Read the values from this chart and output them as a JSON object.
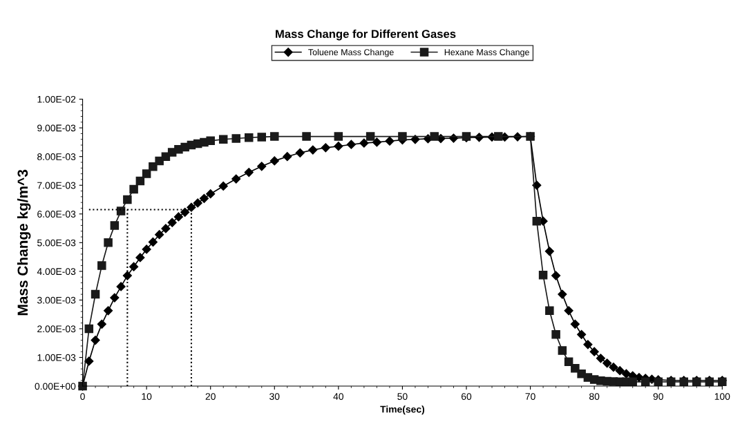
{
  "chart_data": {
    "type": "line",
    "title": "Mass Change for Different Gases",
    "xlabel": "Time(sec)",
    "ylabel": "Mass Change kg/m^3",
    "xlim": [
      0,
      100
    ],
    "xticks": [
      0,
      10,
      20,
      30,
      40,
      50,
      60,
      70,
      80,
      90,
      100
    ],
    "ylim": [
      0,
      0.01
    ],
    "yticks": [
      {
        "value": 0,
        "label": "0.00E+00"
      },
      {
        "value": 0.001,
        "label": "1.00E-03"
      },
      {
        "value": 0.002,
        "label": "2.00E-03"
      },
      {
        "value": 0.003,
        "label": "3.00E-03"
      },
      {
        "value": 0.004,
        "label": "4.00E-03"
      },
      {
        "value": 0.005,
        "label": "5.00E-03"
      },
      {
        "value": 0.006,
        "label": "6.00E-03"
      },
      {
        "value": 0.007,
        "label": "7.00E-03"
      },
      {
        "value": 0.008,
        "label": "8.00E-03"
      },
      {
        "value": 0.009,
        "label": "9.00E-03"
      },
      {
        "value": 0.01,
        "label": "1.00E-02"
      }
    ],
    "grid": false,
    "legend": "top",
    "series": [
      {
        "name": "Toluene Mass Change",
        "color": "#000000",
        "marker": "diamond",
        "line_style": "solid",
        "x": [
          0,
          1,
          2,
          3,
          4,
          5,
          6,
          7,
          8,
          9,
          10,
          11,
          12,
          13,
          14,
          15,
          16,
          17,
          18,
          19,
          20,
          22,
          24,
          26,
          28,
          30,
          32,
          34,
          36,
          38,
          40,
          42,
          44,
          46,
          48,
          50,
          52,
          54,
          56,
          58,
          60,
          62,
          64,
          66,
          68,
          70,
          71,
          72,
          73,
          74,
          75,
          76,
          77,
          78,
          79,
          80,
          81,
          82,
          83,
          84,
          85,
          86,
          87,
          88,
          89,
          90,
          92,
          94,
          96,
          98,
          100
        ],
        "values": [
          0,
          0.00087,
          0.0016,
          0.00216,
          0.00263,
          0.00308,
          0.00347,
          0.00385,
          0.00416,
          0.00448,
          0.00477,
          0.00502,
          0.00528,
          0.00549,
          0.0057,
          0.0059,
          0.00606,
          0.00623,
          0.00638,
          0.00654,
          0.0067,
          0.00697,
          0.00722,
          0.00745,
          0.00766,
          0.00785,
          0.008,
          0.00813,
          0.00823,
          0.00831,
          0.00836,
          0.00842,
          0.00847,
          0.0085,
          0.00854,
          0.00858,
          0.0086,
          0.00862,
          0.00863,
          0.00864,
          0.00866,
          0.00867,
          0.00868,
          0.00868,
          0.00869,
          0.0087,
          0.007,
          0.00575,
          0.0047,
          0.00385,
          0.0032,
          0.00263,
          0.00216,
          0.0018,
          0.00145,
          0.0012,
          0.00097,
          0.0008,
          0.00066,
          0.00054,
          0.00043,
          0.00036,
          0.0003,
          0.00027,
          0.00024,
          0.00022,
          0.0002,
          0.0002,
          0.0002,
          0.0002,
          0.0002
        ]
      },
      {
        "name": "Hexane Mass Change",
        "color": "#1a1a1a",
        "marker": "square",
        "line_style": "solid",
        "x": [
          0,
          1,
          2,
          3,
          4,
          5,
          6,
          7,
          8,
          9,
          10,
          11,
          12,
          13,
          14,
          15,
          16,
          17,
          18,
          19,
          20,
          22,
          24,
          26,
          28,
          30,
          35,
          40,
          45,
          50,
          55,
          60,
          65,
          70,
          71,
          72,
          73,
          74,
          75,
          76,
          77,
          78,
          79,
          80,
          81,
          82,
          83,
          84,
          85,
          86,
          88,
          90,
          92,
          94,
          96,
          98,
          100
        ],
        "values": [
          0,
          0.002,
          0.0032,
          0.0042,
          0.005,
          0.0056,
          0.0061,
          0.0065,
          0.00686,
          0.00715,
          0.0074,
          0.00765,
          0.00785,
          0.008,
          0.00815,
          0.00825,
          0.00833,
          0.0084,
          0.00845,
          0.0085,
          0.00855,
          0.0086,
          0.00863,
          0.00866,
          0.00868,
          0.0087,
          0.0087,
          0.0087,
          0.0087,
          0.0087,
          0.0087,
          0.0087,
          0.0087,
          0.0087,
          0.00575,
          0.00387,
          0.00263,
          0.0018,
          0.00124,
          0.00085,
          0.00062,
          0.00043,
          0.0003,
          0.00023,
          0.00019,
          0.00017,
          0.00016,
          0.00015,
          0.00015,
          0.00015,
          0.00015,
          0.00015,
          0.00015,
          0.00015,
          0.00015,
          0.00015,
          0.00015
        ]
      },
      {
        "color": "#000000",
        "marker": "none",
        "line_style": "dotted",
        "x": [
          1,
          17
        ],
        "values": [
          0.00615,
          0.00615
        ]
      },
      {
        "color": "#000000",
        "marker": "none",
        "line_style": "dotted",
        "x": [
          7,
          7
        ],
        "values": [
          0,
          0.00615
        ]
      },
      {
        "color": "#000000",
        "marker": "none",
        "line_style": "dotted",
        "x": [
          17,
          17
        ],
        "values": [
          0,
          0.00615
        ]
      }
    ]
  }
}
